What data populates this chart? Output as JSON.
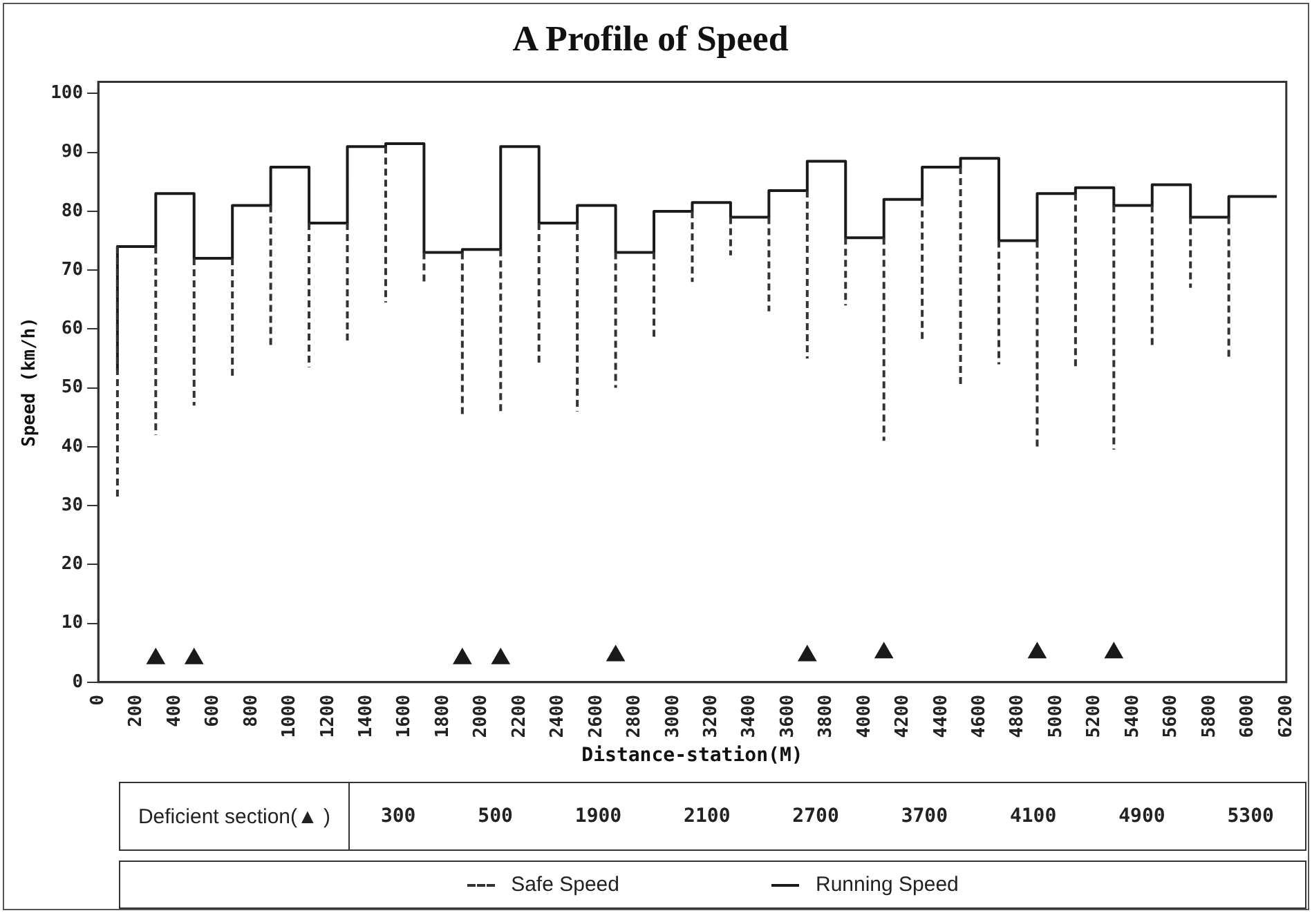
{
  "chart_data": {
    "type": "line",
    "title": "A Profile of Speed",
    "xlabel": "Distance-station(M)",
    "ylabel": "Speed (km/h)",
    "xlim": [
      0,
      6200
    ],
    "xticks": [
      0,
      200,
      400,
      600,
      800,
      1000,
      1200,
      1400,
      1600,
      1800,
      2000,
      2200,
      2400,
      2600,
      2800,
      3000,
      3200,
      3400,
      3600,
      3800,
      4000,
      4200,
      4400,
      4600,
      4800,
      5000,
      5200,
      5400,
      5600,
      5800,
      6000,
      6200
    ],
    "ylim": [
      0,
      102
    ],
    "yticks": [
      0,
      10,
      20,
      30,
      40,
      50,
      60,
      70,
      80,
      90,
      100
    ],
    "grid": false,
    "legend": "bottom",
    "annotations": [
      "Deficient section(▲ )",
      "300",
      "500",
      "1900",
      "2100",
      "2700",
      "3700",
      "4100",
      "4900",
      "5300"
    ],
    "series": [
      {
        "name": "Safe Speed",
        "line_style": "dashed",
        "marker": "none",
        "color": "#333333",
        "x": [
          100,
          100,
          null,
          300,
          300,
          null,
          500,
          500,
          null,
          700,
          700,
          null,
          900,
          900,
          null,
          1100,
          1100,
          null,
          1300,
          1300,
          null,
          1500,
          1500,
          null,
          1700,
          1700,
          null,
          1900,
          1900,
          null,
          2100,
          2100,
          null,
          2300,
          2300,
          null,
          2500,
          2500,
          null,
          2700,
          2700,
          null,
          2900,
          2900,
          null,
          3100,
          3100,
          null,
          3300,
          3300,
          null,
          3500,
          3500,
          null,
          3700,
          3700,
          null,
          3900,
          3900,
          null,
          4100,
          4100,
          null,
          4300,
          4300,
          null,
          4500,
          4500,
          null,
          4700,
          4700,
          null,
          4900,
          4900,
          null,
          5100,
          5100,
          null,
          5300,
          5300,
          null,
          5500,
          5500,
          null,
          5700,
          5700,
          null,
          5900,
          5900
        ],
        "values": [
          74,
          31,
          null,
          74,
          42,
          null,
          72,
          47,
          null,
          72,
          52,
          null,
          81,
          57,
          null,
          78,
          53.5,
          null,
          78,
          58,
          null,
          91,
          64.5,
          null,
          73,
          68,
          null,
          73,
          45,
          null,
          73.5,
          45.5,
          null,
          78,
          54,
          null,
          78,
          46,
          null,
          73,
          50,
          null,
          73,
          58,
          null,
          80,
          68,
          null,
          79,
          72.5,
          null,
          79,
          63,
          null,
          83.5,
          55,
          null,
          75.5,
          64,
          null,
          75.5,
          41,
          null,
          82,
          58,
          null,
          87.5,
          50.5,
          null,
          75,
          54,
          null,
          75,
          39.5,
          null,
          83,
          53.5,
          null,
          81,
          39.5,
          null,
          81,
          57,
          null,
          79,
          67,
          null,
          79,
          55
        ]
      },
      {
        "name": "Running Speed",
        "type": "step",
        "line_style": "solid",
        "marker": "none",
        "color": "#1a1a1a",
        "x": [
          100,
          100,
          300,
          500,
          700,
          900,
          1100,
          1300,
          1500,
          1700,
          1900,
          2100,
          2300,
          2500,
          2700,
          2900,
          3100,
          3300,
          3500,
          3700,
          3900,
          4100,
          4300,
          4500,
          4700,
          4900,
          5100,
          5300,
          5500,
          5700,
          5900,
          6150
        ],
        "values": [
          53,
          74,
          83,
          72,
          81,
          87.5,
          78,
          91,
          91.5,
          73,
          73.5,
          91,
          78,
          81,
          73,
          80,
          81.5,
          79,
          83.5,
          88.5,
          75.5,
          82,
          87.5,
          89,
          75,
          83,
          84,
          81,
          84.5,
          79,
          82.5,
          82.5
        ]
      },
      {
        "type": "scatter",
        "marker": "triangle",
        "color": "#1a1a1a",
        "x": [
          300,
          500,
          1900,
          2100,
          2700,
          3700,
          4100,
          4900,
          5300
        ],
        "values": [
          4,
          4,
          4,
          4,
          4.5,
          4.5,
          5,
          5,
          5
        ]
      }
    ]
  }
}
